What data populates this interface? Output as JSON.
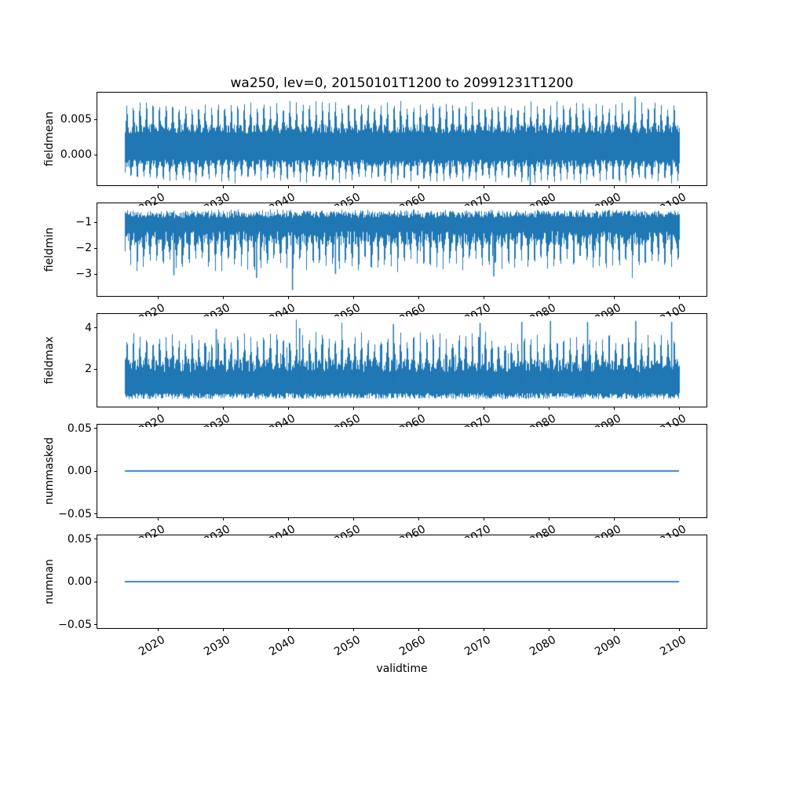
{
  "figure": {
    "title": "wa250, lev=0, 20150101T1200 to 20991231T1200",
    "xlabel": "validtime",
    "background": "#ffffff",
    "line_color": "#1f77b4",
    "axis_color": "#000000",
    "text_color": "#000000"
  },
  "chart_data": {
    "type": "line",
    "title": "wa250, lev=0, 20150101T1200 to 20991231T1200",
    "xlabel": "validtime",
    "grid": false,
    "legend": false,
    "line_color": "#1f77b4",
    "xlim": [
      2010.75,
      2104.25
    ],
    "x_data_range": [
      2015.0,
      2100.0
    ],
    "x_ticks": [
      2020,
      2030,
      2040,
      2050,
      2060,
      2070,
      2080,
      2090,
      2100
    ],
    "x_tick_labels": [
      "2020",
      "2030",
      "2040",
      "2050",
      "2060",
      "2070",
      "2080",
      "2090",
      "2100"
    ],
    "x_tick_rotation_deg": 30,
    "subplots": [
      {
        "name": "fieldmean",
        "ylabel": "fieldmean",
        "ylim": [
          -0.00433,
          0.00878
        ],
        "yticks": [
          {
            "value": 0.005,
            "label": "0.005"
          },
          {
            "value": 0.0,
            "label": "0.000"
          }
        ],
        "series_type": "noisy_band",
        "seed": 101,
        "stats": {
          "approx_mean": 0.0015,
          "approx_min": -0.0046,
          "approx_max": 0.0082,
          "typical_range": [
            -0.002,
            0.0065
          ]
        },
        "band": {
          "top": {
            "base": 0.003,
            "noise": 0.0013,
            "seasonal": 0.0034,
            "pow": 2,
            "phase": 0.0
          },
          "bottom": {
            "base": -0.0007,
            "noise": -0.0011,
            "seasonal": -0.0023,
            "pow": 2,
            "phase": 0.42
          }
        },
        "rare": {
          "p": 0.006,
          "top": 0.0009,
          "bottom": -0.0005
        },
        "extremes": [
          {
            "year": 2093.3,
            "value": 0.0082
          },
          {
            "year": 2077.2,
            "value": -0.0046
          }
        ]
      },
      {
        "name": "fieldmin",
        "ylabel": "fieldmin",
        "ylim": [
          -3.85,
          -0.273
        ],
        "yticks": [
          {
            "value": -1,
            "label": "−1"
          },
          {
            "value": -2,
            "label": "−2"
          },
          {
            "value": -3,
            "label": "−3"
          }
        ],
        "series_type": "noisy_band",
        "seed": 202,
        "stats": {
          "approx_max": -0.45,
          "approx_min": -3.62,
          "typical_range": [
            -2.2,
            -0.6
          ]
        },
        "band": {
          "top": {
            "base": -0.56,
            "noise": -0.28,
            "seasonal": 0.06,
            "pow": 1,
            "phase": 0.0
          },
          "bottom": {
            "base": -1.35,
            "noise": -0.55,
            "seasonal": -1.05,
            "pow": 2,
            "phase": 0.45
          }
        },
        "rare": {
          "p": 0.012,
          "top": 0,
          "bottom": -0.4
        },
        "extremes": [
          {
            "year": 2040.7,
            "value": -3.62
          },
          {
            "year": 2022.5,
            "value": -3.05
          },
          {
            "year": 2035.2,
            "value": -3.15
          },
          {
            "year": 2047.3,
            "value": -3.0
          },
          {
            "year": 2071.6,
            "value": -3.1
          }
        ]
      },
      {
        "name": "fieldmax",
        "ylabel": "fieldmax",
        "ylim": [
          0.154,
          4.69
        ],
        "yticks": [
          {
            "value": 4,
            "label": "4"
          },
          {
            "value": 2,
            "label": "2"
          }
        ],
        "series_type": "noisy_band",
        "seed": 303,
        "stats": {
          "approx_min": 0.45,
          "approx_max": 4.35,
          "typical_range": [
            0.6,
            3.5
          ]
        },
        "band": {
          "top": {
            "base": 1.85,
            "noise": 0.65,
            "seasonal": 1.35,
            "pow": 2,
            "phase": 0.0
          },
          "bottom": {
            "base": 0.52,
            "noise": 0.3,
            "seasonal": 0,
            "pow": 1,
            "phase": 0.0
          }
        },
        "rare": {
          "p": 0.015,
          "top": 0.6,
          "bottom": 0
        },
        "extremes": [
          {
            "year": 2029.0,
            "value": 3.95
          },
          {
            "year": 2041.8,
            "value": 4.0
          },
          {
            "year": 2056.2,
            "value": 4.2
          },
          {
            "year": 2069.5,
            "value": 4.25
          },
          {
            "year": 2075.9,
            "value": 4.3
          },
          {
            "year": 2080.3,
            "value": 4.35
          },
          {
            "year": 2086.0,
            "value": 4.3
          },
          {
            "year": 2093.4,
            "value": 4.35
          },
          {
            "year": 2098.9,
            "value": 4.3
          }
        ]
      },
      {
        "name": "nummasked",
        "ylabel": "nummasked",
        "ylim": [
          -0.0541,
          0.0541
        ],
        "yticks": [
          {
            "value": 0.05,
            "label": "0.05"
          },
          {
            "value": 0.0,
            "label": "0.00"
          },
          {
            "value": -0.05,
            "label": "−0.05"
          }
        ],
        "series_type": "flat",
        "flat_value": 0.0,
        "stats": {
          "constant": 0.0
        }
      },
      {
        "name": "numnan",
        "ylabel": "numnan",
        "ylim": [
          -0.0541,
          0.0541
        ],
        "yticks": [
          {
            "value": 0.05,
            "label": "0.05"
          },
          {
            "value": 0.0,
            "label": "0.00"
          },
          {
            "value": -0.05,
            "label": "−0.05"
          }
        ],
        "series_type": "flat",
        "flat_value": 0.0,
        "stats": {
          "constant": 0.0
        }
      }
    ]
  }
}
